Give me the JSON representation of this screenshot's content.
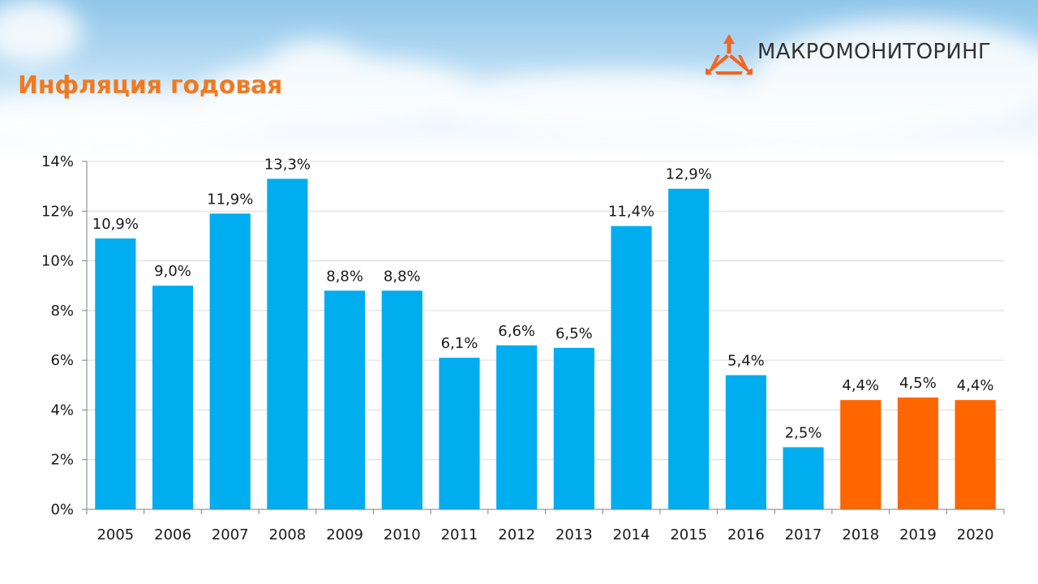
{
  "header": {
    "title": "Инфляция годовая",
    "brand_name": "МАКРОМОНИТОРИНГ"
  },
  "colors": {
    "actual": "#00adee",
    "forecast": "#ff6600",
    "title": "#f07a22",
    "logo": "#f26522"
  },
  "icons": {
    "brand_logo": "tripod-arrows-logo"
  },
  "chart_data": {
    "type": "bar",
    "categories": [
      "2005",
      "2006",
      "2007",
      "2008",
      "2009",
      "2010",
      "2011",
      "2012",
      "2013",
      "2014",
      "2015",
      "2016",
      "2017",
      "2018",
      "2019",
      "2020"
    ],
    "values": [
      10.9,
      9.0,
      11.9,
      13.3,
      8.8,
      8.8,
      6.1,
      6.6,
      6.5,
      11.4,
      12.9,
      5.4,
      2.5,
      4.4,
      4.5,
      4.4
    ],
    "data_labels": [
      "10,9%",
      "9,0%",
      "11,9%",
      "13,3%",
      "8,8%",
      "8,8%",
      "6,1%",
      "6,6%",
      "6,5%",
      "11,4%",
      "12,9%",
      "5,4%",
      "2,5%",
      "4,4%",
      "4,5%",
      "4,4%"
    ],
    "forecast": [
      false,
      false,
      false,
      false,
      false,
      false,
      false,
      false,
      false,
      false,
      false,
      false,
      false,
      true,
      true,
      true
    ],
    "ylim": [
      0,
      14
    ],
    "yticks": [
      0,
      2,
      4,
      6,
      8,
      10,
      12,
      14
    ],
    "ytick_labels": [
      "0%",
      "2%",
      "4%",
      "6%",
      "8%",
      "10%",
      "12%",
      "14%"
    ],
    "grid": true,
    "legend": "none"
  }
}
